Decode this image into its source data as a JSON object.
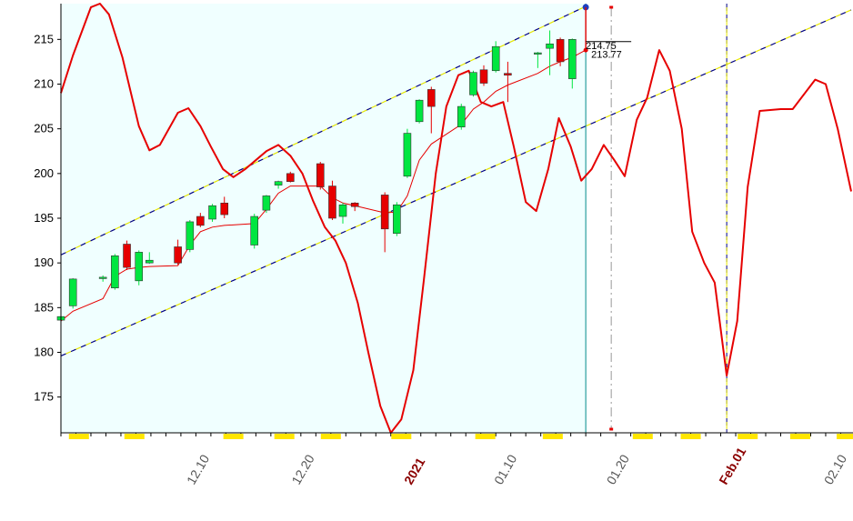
{
  "chart_data": {
    "type": "candlestick",
    "ylim": [
      171,
      219
    ],
    "y_ticks": [
      175,
      180,
      185,
      190,
      195,
      200,
      205,
      210,
      215
    ],
    "x_ticks": [
      {
        "label": "12.10",
        "bold": false,
        "t": 8.5
      },
      {
        "label": "12.20",
        "bold": false,
        "t": 15.5
      },
      {
        "label": "2021",
        "bold": true,
        "t": 23.0
      },
      {
        "label": "01.10",
        "bold": false,
        "t": 29.0
      },
      {
        "label": "01.20",
        "bold": false,
        "t": 36.5
      },
      {
        "label": "Feb.01",
        "bold": true,
        "t": 44.0
      },
      {
        "label": "02.10",
        "bold": false,
        "t": 51.0
      }
    ],
    "candles": [
      {
        "t": 0.0,
        "o": 183.6,
        "h": 184.2,
        "l": 183.0,
        "c": 184.0
      },
      {
        "t": 0.8,
        "o": 185.2,
        "h": 188.3,
        "l": 184.9,
        "c": 188.2
      },
      {
        "t": 2.8,
        "o": 188.3,
        "h": 188.6,
        "l": 187.9,
        "c": 188.4
      },
      {
        "t": 3.6,
        "o": 187.2,
        "h": 191.0,
        "l": 187.0,
        "c": 190.8
      },
      {
        "t": 4.4,
        "o": 192.1,
        "h": 192.5,
        "l": 189.2,
        "c": 189.5
      },
      {
        "t": 5.2,
        "o": 188.0,
        "h": 191.4,
        "l": 187.5,
        "c": 191.2
      },
      {
        "t": 5.9,
        "o": 190.0,
        "h": 191.2,
        "l": 189.9,
        "c": 190.3
      },
      {
        "t": 7.8,
        "o": 191.8,
        "h": 192.6,
        "l": 189.8,
        "c": 190.0
      },
      {
        "t": 8.6,
        "o": 191.5,
        "h": 194.8,
        "l": 191.2,
        "c": 194.6
      },
      {
        "t": 9.3,
        "o": 195.2,
        "h": 195.6,
        "l": 194.0,
        "c": 194.2
      },
      {
        "t": 10.1,
        "o": 194.9,
        "h": 196.6,
        "l": 194.6,
        "c": 196.4
      },
      {
        "t": 10.9,
        "o": 196.7,
        "h": 197.4,
        "l": 195.0,
        "c": 195.4
      },
      {
        "t": 12.9,
        "o": 192.0,
        "h": 195.5,
        "l": 191.6,
        "c": 195.2
      },
      {
        "t": 13.7,
        "o": 195.9,
        "h": 197.6,
        "l": 195.6,
        "c": 197.5
      },
      {
        "t": 14.5,
        "o": 198.7,
        "h": 199.2,
        "l": 198.3,
        "c": 199.1
      },
      {
        "t": 15.3,
        "o": 200.0,
        "h": 200.2,
        "l": 199.0,
        "c": 199.1
      },
      {
        "t": 17.3,
        "o": 201.1,
        "h": 201.3,
        "l": 198.2,
        "c": 198.5
      },
      {
        "t": 18.1,
        "o": 198.6,
        "h": 199.2,
        "l": 194.8,
        "c": 195.0
      },
      {
        "t": 18.8,
        "o": 195.2,
        "h": 196.7,
        "l": 194.4,
        "c": 196.5
      },
      {
        "t": 19.6,
        "o": 196.7,
        "h": 196.8,
        "l": 195.8,
        "c": 196.3
      },
      {
        "t": 21.6,
        "o": 197.6,
        "h": 197.9,
        "l": 191.2,
        "c": 193.8
      },
      {
        "t": 22.4,
        "o": 193.3,
        "h": 196.8,
        "l": 193.0,
        "c": 196.5
      },
      {
        "t": 23.1,
        "o": 199.7,
        "h": 205.0,
        "l": 199.5,
        "c": 204.5
      },
      {
        "t": 23.9,
        "o": 205.8,
        "h": 208.3,
        "l": 205.6,
        "c": 208.2
      },
      {
        "t": 24.7,
        "o": 209.4,
        "h": 209.7,
        "l": 204.5,
        "c": 207.5
      },
      {
        "t": 26.7,
        "o": 205.2,
        "h": 207.8,
        "l": 204.9,
        "c": 207.5
      },
      {
        "t": 27.5,
        "o": 208.8,
        "h": 211.5,
        "l": 208.6,
        "c": 211.3
      },
      {
        "t": 28.2,
        "o": 211.6,
        "h": 212.1,
        "l": 209.8,
        "c": 210.1
      },
      {
        "t": 29.0,
        "o": 211.5,
        "h": 214.8,
        "l": 211.3,
        "c": 214.2
      },
      {
        "t": 29.8,
        "o": 211.2,
        "h": 212.5,
        "l": 208.0,
        "c": 211.0
      },
      {
        "t": 31.8,
        "o": 213.4,
        "h": 213.6,
        "l": 211.8,
        "c": 213.5
      },
      {
        "t": 32.6,
        "o": 214.0,
        "h": 216.0,
        "l": 211.0,
        "c": 214.5
      },
      {
        "t": 33.3,
        "o": 215.0,
        "h": 215.2,
        "l": 212.0,
        "c": 212.5
      },
      {
        "t": 34.1,
        "o": 210.6,
        "h": 215.1,
        "l": 209.5,
        "c": 215.0
      }
    ],
    "ma_line": [
      [
        0.0,
        183.5
      ],
      [
        0.8,
        184.6
      ],
      [
        2.8,
        186.0
      ],
      [
        3.6,
        188.5
      ],
      [
        4.4,
        189.3
      ],
      [
        5.2,
        189.5
      ],
      [
        5.9,
        189.6
      ],
      [
        7.8,
        189.7
      ],
      [
        8.6,
        192.0
      ],
      [
        9.3,
        193.5
      ],
      [
        10.1,
        194.0
      ],
      [
        10.9,
        194.2
      ],
      [
        12.9,
        194.4
      ],
      [
        13.7,
        196.0
      ],
      [
        14.5,
        197.8
      ],
      [
        15.3,
        198.6
      ],
      [
        17.3,
        198.6
      ],
      [
        18.1,
        197.3
      ],
      [
        18.8,
        196.7
      ],
      [
        19.6,
        196.4
      ],
      [
        21.6,
        195.6
      ],
      [
        22.4,
        195.7
      ],
      [
        23.1,
        197.5
      ],
      [
        23.9,
        201.5
      ],
      [
        24.7,
        203.3
      ],
      [
        26.7,
        205.5
      ],
      [
        27.5,
        207.2
      ],
      [
        28.2,
        208.0
      ],
      [
        29.0,
        209.2
      ],
      [
        29.8,
        209.9
      ],
      [
        31.8,
        211.2
      ],
      [
        32.6,
        212.0
      ],
      [
        33.3,
        212.5
      ],
      [
        34.1,
        213.0
      ],
      [
        35.0,
        213.8
      ]
    ],
    "oscillator": [
      [
        0.0,
        209.0
      ],
      [
        0.8,
        213.2
      ],
      [
        2.0,
        218.6
      ],
      [
        2.6,
        219.0
      ],
      [
        3.2,
        217.8
      ],
      [
        4.1,
        213.0
      ],
      [
        5.2,
        205.3
      ],
      [
        5.9,
        202.6
      ],
      [
        6.6,
        203.2
      ],
      [
        7.8,
        206.8
      ],
      [
        8.5,
        207.3
      ],
      [
        9.3,
        205.3
      ],
      [
        10.0,
        203.0
      ],
      [
        10.8,
        200.5
      ],
      [
        11.5,
        199.6
      ],
      [
        12.3,
        200.5
      ],
      [
        13.7,
        202.5
      ],
      [
        14.5,
        203.2
      ],
      [
        15.3,
        202.0
      ],
      [
        16.1,
        200.0
      ],
      [
        16.8,
        197.0
      ],
      [
        17.6,
        194.0
      ],
      [
        18.3,
        192.5
      ],
      [
        19.0,
        190.0
      ],
      [
        19.8,
        185.5
      ],
      [
        20.5,
        180.0
      ],
      [
        21.3,
        174.0
      ],
      [
        22.0,
        171.0
      ],
      [
        22.7,
        172.5
      ],
      [
        23.5,
        178.0
      ],
      [
        24.2,
        188.0
      ],
      [
        25.0,
        200.0
      ],
      [
        25.7,
        207.5
      ],
      [
        26.5,
        211.0
      ],
      [
        27.2,
        211.5
      ],
      [
        28.0,
        208.0
      ],
      [
        28.7,
        207.5
      ],
      [
        29.5,
        208.0
      ],
      [
        30.2,
        203.0
      ],
      [
        31.0,
        196.8
      ],
      [
        31.7,
        195.8
      ],
      [
        32.5,
        200.5
      ],
      [
        33.2,
        206.2
      ],
      [
        34.0,
        203.0
      ],
      [
        34.7,
        199.2
      ],
      [
        35.4,
        200.5
      ],
      [
        36.2,
        203.2
      ],
      [
        36.9,
        201.5
      ],
      [
        37.6,
        199.7
      ],
      [
        38.4,
        206.0
      ],
      [
        39.1,
        208.5
      ],
      [
        39.9,
        213.8
      ],
      [
        40.6,
        211.5
      ],
      [
        41.4,
        205.0
      ],
      [
        42.1,
        193.5
      ],
      [
        42.9,
        190.0
      ],
      [
        43.6,
        187.8
      ],
      [
        44.4,
        177.4
      ],
      [
        45.1,
        183.5
      ],
      [
        45.8,
        198.5
      ],
      [
        46.6,
        207.0
      ],
      [
        48.0,
        207.2
      ],
      [
        48.8,
        207.2
      ],
      [
        50.3,
        210.5
      ],
      [
        51.0,
        210.0
      ],
      [
        51.8,
        205.0
      ],
      [
        52.7,
        198.0
      ]
    ],
    "channel": {
      "upper": [
        [
          0.0,
          190.9
        ],
        [
          52.7,
          218.7
        ]
      ],
      "lower": [
        [
          0.0,
          179.7
        ],
        [
          52.7,
          218.7
        ]
      ],
      "lower_end": [
        [
          0.0,
          179.7
        ],
        [
          52.7,
          218.7
        ]
      ]
    },
    "channel_lines": [
      {
        "from": [
          0.0,
          190.9
        ],
        "to": [
          35.0,
          218.7
        ]
      },
      {
        "from": [
          0.0,
          179.6
        ],
        "to": [
          52.7,
          218.3
        ]
      }
    ],
    "vlines": [
      {
        "t": 35.0,
        "style": "solid-teal"
      },
      {
        "t": 36.7,
        "style": "dash-red"
      },
      {
        "t": 44.4,
        "style": "dash-black"
      }
    ],
    "price_labels": [
      "214.75",
      "213.77"
    ],
    "last_price_marker": 218.6,
    "shaded_region_end_t": 35.0,
    "highlight_blocks_t": [
      1.2,
      4.9,
      11.5,
      14.9,
      18.0,
      22.7,
      28.3,
      32.8,
      38.8,
      42.0,
      45.8,
      49.3,
      52.4
    ],
    "colors": {
      "background_shade": "#f0ffff",
      "up_candle": "#00e640",
      "down_candle": "#e60000",
      "ma_line": "#e60000",
      "oscillator": "#e60000",
      "channel_dash_a": "#000080",
      "channel_dash_b": "#e6e600",
      "teal_vline": "#008b8b",
      "highlight_block": "#ffe600"
    }
  }
}
